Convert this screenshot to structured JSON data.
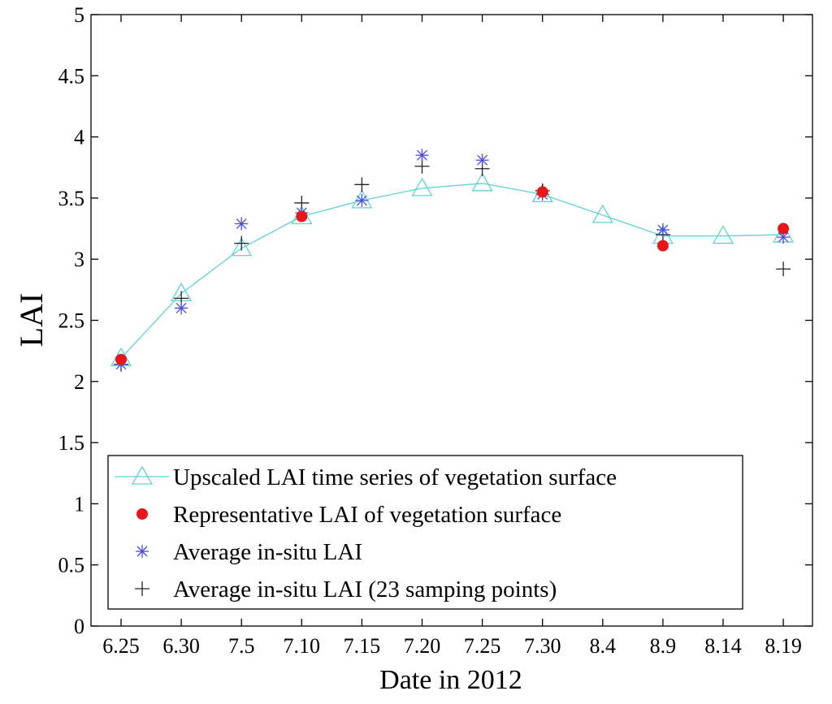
{
  "chart_data": {
    "type": "line",
    "title": "",
    "xlabel": "Date in 2012",
    "ylabel": "LAI",
    "categories": [
      "6.25",
      "6.30",
      "7.5",
      "7.10",
      "7.15",
      "7.20",
      "7.25",
      "7.30",
      "8.4",
      "8.9",
      "8.14",
      "8.19"
    ],
    "ylim": [
      0,
      5
    ],
    "yticks": [
      "0",
      "0.5",
      "1",
      "1.5",
      "2",
      "2.5",
      "3",
      "3.5",
      "4",
      "4.5",
      "5"
    ],
    "grid": false,
    "legend_position": "bottom-center",
    "series": [
      {
        "name": "Upscaled LAI time series of vegetation surface",
        "style": "line-triangle",
        "color": "#5fd3d3",
        "values": [
          2.19,
          2.72,
          3.09,
          3.35,
          3.48,
          3.58,
          3.62,
          3.53,
          3.36,
          3.19,
          3.19,
          3.2
        ]
      },
      {
        "name": "Representative LAI of vegetation surface",
        "style": "filled-circle",
        "color": "#e8161b",
        "values": [
          2.18,
          null,
          null,
          3.35,
          null,
          null,
          null,
          3.55,
          null,
          3.11,
          null,
          3.25
        ]
      },
      {
        "name": "Average in-situ LAI",
        "style": "asterisk",
        "color": "#4a4ae8",
        "values": [
          2.14,
          2.6,
          3.29,
          3.38,
          3.48,
          3.85,
          3.81,
          3.53,
          null,
          3.24,
          null,
          3.18
        ]
      },
      {
        "name": "Average in-situ LAI (23 samping points)",
        "style": "plus",
        "color": "#222222",
        "values": [
          2.14,
          2.68,
          3.13,
          3.46,
          3.61,
          3.76,
          3.74,
          3.56,
          null,
          3.2,
          null,
          2.92
        ]
      }
    ]
  }
}
